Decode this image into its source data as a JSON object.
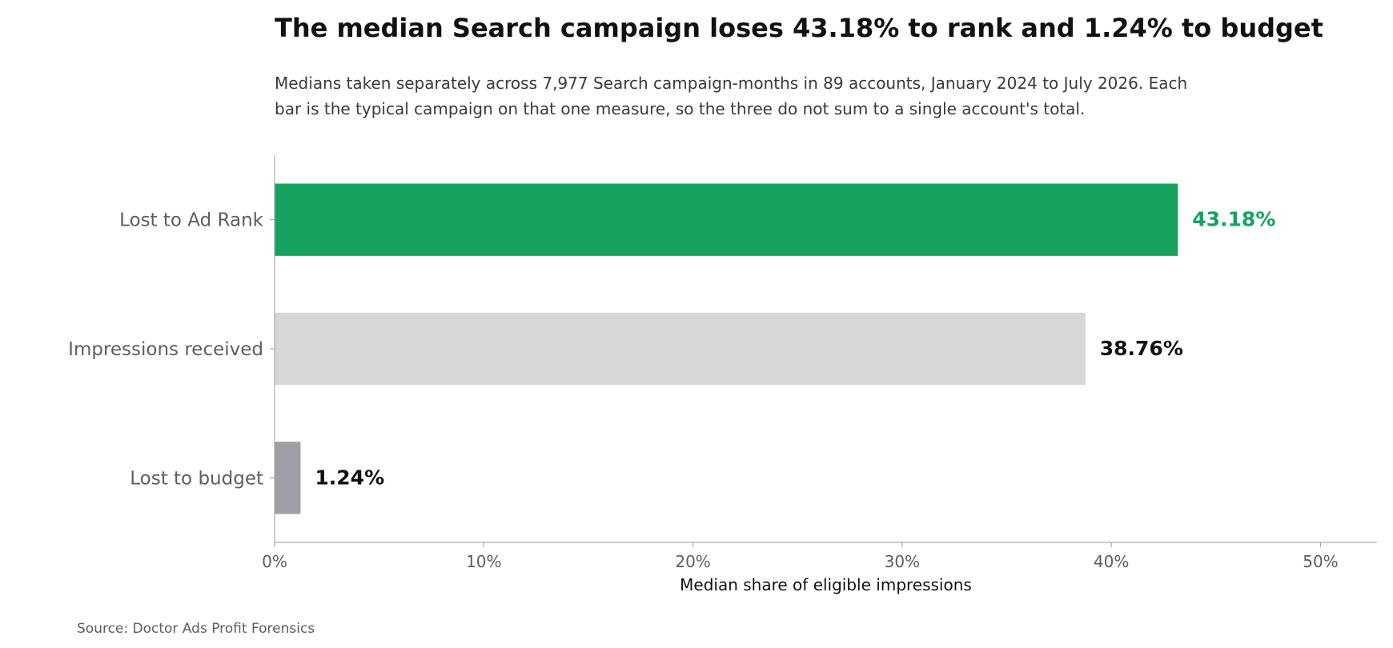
{
  "title": "The median Search campaign loses 43.18% to rank and 1.24% to budget",
  "subtitle": "Medians taken separately across 7,977 Search campaign-months in 89 accounts, January 2024 to July 2026. Each bar is the typical campaign on that one measure, so the three do not sum to a single account's total.",
  "source": "Source: Doctor Ads Profit Forensics",
  "colors": {
    "highlight": "#16a25e",
    "neutral_bar": "#d7d7d7",
    "muted_bar": "#9ca0a6",
    "label_dark": "#111111",
    "axis": "#aaaaaa",
    "tick_text": "#5e5e5e"
  },
  "chart_data": {
    "type": "bar",
    "orientation": "horizontal",
    "categories": [
      "Lost to Ad Rank",
      "Impressions received",
      "Lost to budget"
    ],
    "values": [
      43.18,
      38.76,
      1.24
    ],
    "data_labels": [
      "43.18%",
      "38.76%",
      "1.24%"
    ],
    "bar_colors": [
      "#16a25e",
      "#d7d7d7",
      "#9ca0a6"
    ],
    "label_colors": [
      "#16a25e",
      "#111111",
      "#111111"
    ],
    "xlabel": "Median share of eligible impressions",
    "ylabel": "",
    "xlim": [
      0,
      52.7
    ],
    "xticks": [
      0,
      10,
      20,
      30,
      40,
      50
    ],
    "xtick_labels": [
      "0%",
      "10%",
      "20%",
      "30%",
      "40%",
      "50%"
    ],
    "grid": false,
    "legend": "none"
  }
}
